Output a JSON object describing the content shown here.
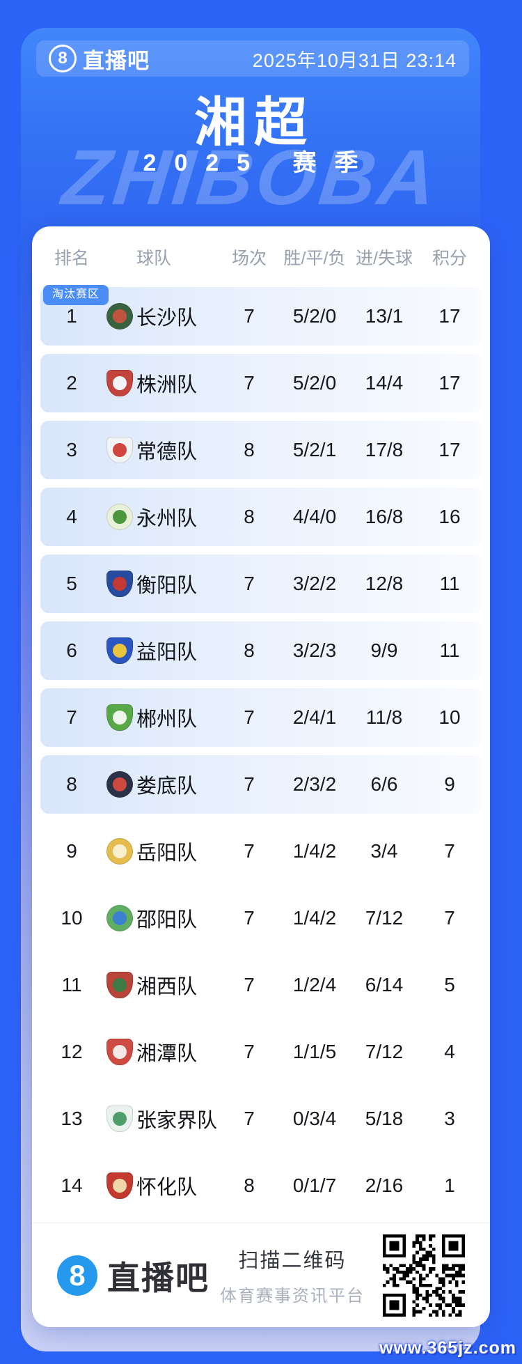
{
  "page": {
    "brand": "直播吧",
    "brand_icon": "8",
    "datetime": "2025年10月31日 23:14",
    "title": "湘超",
    "subtitle": "2025 赛季",
    "background_watermark": "ZHIBOBA",
    "site_watermark": "www.365jz.com"
  },
  "colors": {
    "page_background": "#2c63f7",
    "card_blue_top": "#3473f5",
    "card_blue_bottom": "#ccd2f6",
    "row_highlight": "#d9e6fb",
    "zone_badge_bg": "#4a8cf8",
    "footer_brand_blue": "#2499ee"
  },
  "table": {
    "zone_badge": "淘汰赛区",
    "columns": [
      "排名",
      "球队",
      "场次",
      "胜/平/负",
      "进/失球",
      "积分"
    ],
    "rows": [
      {
        "rank": "1",
        "team": "长沙队",
        "played": "7",
        "wdl": "5/2/0",
        "goals": "13/1",
        "points": "17",
        "highlight": true,
        "logo": {
          "shape": "circle",
          "c1": "#39623f",
          "c2": "#c0543e"
        }
      },
      {
        "rank": "2",
        "team": "株洲队",
        "played": "7",
        "wdl": "5/2/0",
        "goals": "14/4",
        "points": "17",
        "highlight": true,
        "logo": {
          "shape": "shield",
          "c1": "#c2443c",
          "c2": "#f3f4f6"
        }
      },
      {
        "rank": "3",
        "team": "常德队",
        "played": "8",
        "wdl": "5/2/1",
        "goals": "17/8",
        "points": "17",
        "highlight": true,
        "logo": {
          "shape": "shield",
          "c1": "#f2f3f5",
          "c2": "#d0453e"
        }
      },
      {
        "rank": "4",
        "team": "永州队",
        "played": "8",
        "wdl": "4/4/0",
        "goals": "16/8",
        "points": "16",
        "highlight": true,
        "logo": {
          "shape": "circle",
          "c1": "#e8f0d8",
          "c2": "#4c9640"
        }
      },
      {
        "rank": "5",
        "team": "衡阳队",
        "played": "7",
        "wdl": "3/2/2",
        "goals": "12/8",
        "points": "11",
        "highlight": true,
        "logo": {
          "shape": "shield",
          "c1": "#274b9e",
          "c2": "#c23a32"
        }
      },
      {
        "rank": "6",
        "team": "益阳队",
        "played": "8",
        "wdl": "3/2/3",
        "goals": "9/9",
        "points": "11",
        "highlight": true,
        "logo": {
          "shape": "shield",
          "c1": "#2b55c0",
          "c2": "#e9c53e"
        }
      },
      {
        "rank": "7",
        "team": "郴州队",
        "played": "7",
        "wdl": "2/4/1",
        "goals": "11/8",
        "points": "10",
        "highlight": true,
        "logo": {
          "shape": "shield",
          "c1": "#58a847",
          "c2": "#eef5ea"
        }
      },
      {
        "rank": "8",
        "team": "娄底队",
        "played": "7",
        "wdl": "2/3/2",
        "goals": "6/6",
        "points": "9",
        "highlight": true,
        "logo": {
          "shape": "circle",
          "c1": "#2b3248",
          "c2": "#cf4a3e"
        }
      },
      {
        "rank": "9",
        "team": "岳阳队",
        "played": "7",
        "wdl": "1/4/2",
        "goals": "3/4",
        "points": "7",
        "highlight": false,
        "logo": {
          "shape": "circle",
          "c1": "#e5bd4f",
          "c2": "#f8efcf"
        }
      },
      {
        "rank": "10",
        "team": "邵阳队",
        "played": "7",
        "wdl": "1/4/2",
        "goals": "7/12",
        "points": "7",
        "highlight": false,
        "logo": {
          "shape": "circle",
          "c1": "#5fae62",
          "c2": "#3d7fd0"
        }
      },
      {
        "rank": "11",
        "team": "湘西队",
        "played": "7",
        "wdl": "1/2/4",
        "goals": "6/14",
        "points": "5",
        "highlight": false,
        "logo": {
          "shape": "shield",
          "c1": "#b8443a",
          "c2": "#3e7a46"
        }
      },
      {
        "rank": "12",
        "team": "湘潭队",
        "played": "7",
        "wdl": "1/1/5",
        "goals": "7/12",
        "points": "4",
        "highlight": false,
        "logo": {
          "shape": "shield",
          "c1": "#cf4a42",
          "c2": "#f5e8e6"
        }
      },
      {
        "rank": "13",
        "team": "张家界队",
        "played": "7",
        "wdl": "0/3/4",
        "goals": "5/18",
        "points": "3",
        "highlight": false,
        "logo": {
          "shape": "shield",
          "c1": "#e9f2ec",
          "c2": "#4e9e6b"
        }
      },
      {
        "rank": "14",
        "team": "怀化队",
        "played": "8",
        "wdl": "0/1/7",
        "goals": "2/16",
        "points": "1",
        "highlight": false,
        "logo": {
          "shape": "shield",
          "c1": "#c23a30",
          "c2": "#f0d8a8"
        }
      }
    ]
  },
  "footer": {
    "brand": "直播吧",
    "brand_icon": "8",
    "scan_text": "扫描二维码",
    "platform_text": "体育赛事资讯平台",
    "qr": "qr-code"
  }
}
